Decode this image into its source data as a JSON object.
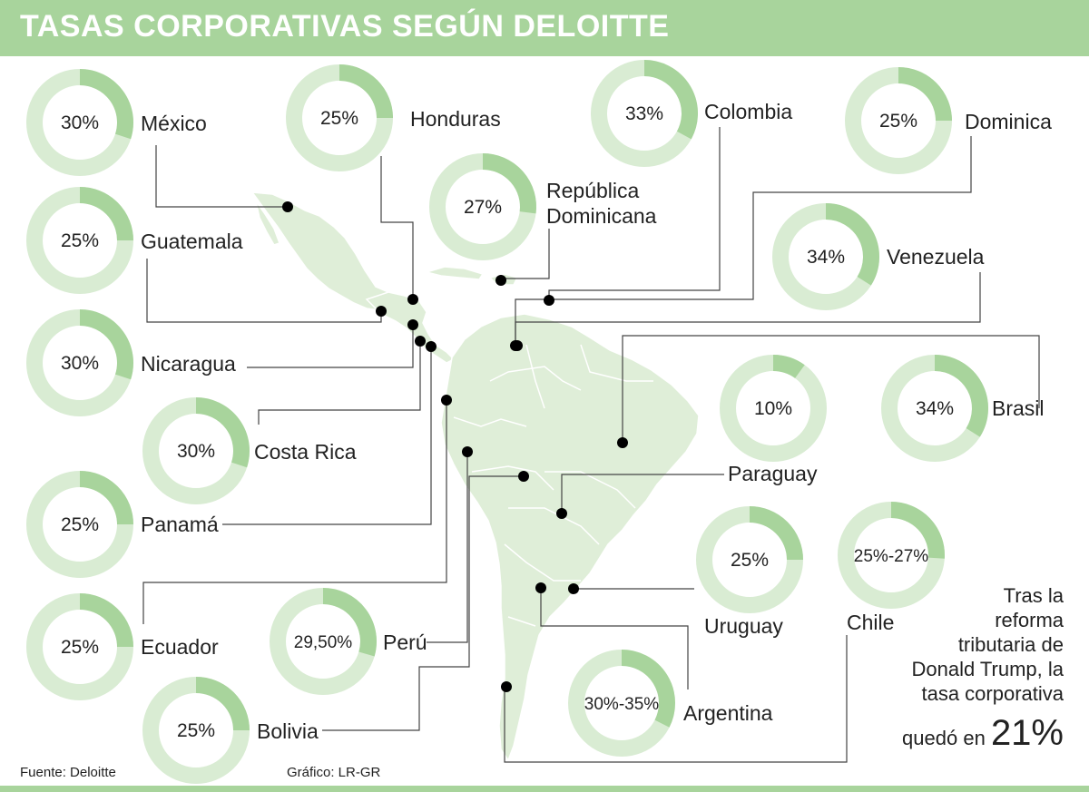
{
  "header": {
    "title": "TASAS CORPORATIVAS SEGÚN DELOITTE"
  },
  "colors": {
    "header_bg": "#a8d49c",
    "ring_fill": "#a8d49c",
    "ring_track": "#d9ecd3",
    "map": "#dfeed8",
    "map_border": "#ffffff",
    "dot": "#000000",
    "line": "#444444"
  },
  "chart_data": {
    "type": "pie",
    "title": "TASAS CORPORATIVAS SEGÚN DELOITTE",
    "unit": "%",
    "series": [
      {
        "country": "México",
        "label": "30%",
        "value": 30
      },
      {
        "country": "Honduras",
        "label": "25%",
        "value": 25
      },
      {
        "country": "Colombia",
        "label": "33%",
        "value": 33
      },
      {
        "country": "Dominica",
        "label": "25%",
        "value": 25
      },
      {
        "country": "República Dominicana",
        "label": "27%",
        "value": 27
      },
      {
        "country": "Guatemala",
        "label": "25%",
        "value": 25
      },
      {
        "country": "Venezuela",
        "label": "34%",
        "value": 34
      },
      {
        "country": "Nicaragua",
        "label": "30%",
        "value": 30
      },
      {
        "country": "Costa Rica",
        "label": "30%",
        "value": 30
      },
      {
        "country": "Paraguay",
        "label": "10%",
        "value": 10
      },
      {
        "country": "Brasil",
        "label": "34%",
        "value": 34
      },
      {
        "country": "Panamá",
        "label": "25%",
        "value": 25
      },
      {
        "country": "Uruguay",
        "label": "25%",
        "value": 25
      },
      {
        "country": "Chile",
        "label": "25%-27%",
        "value": 26
      },
      {
        "country": "Ecuador",
        "label": "25%",
        "value": 25
      },
      {
        "country": "Perú",
        "label": "29,50%",
        "value": 29.5
      },
      {
        "country": "Argentina",
        "label": "30%-35%",
        "value": 32.5
      },
      {
        "country": "Bolivia",
        "label": "25%",
        "value": 25
      }
    ]
  },
  "note": {
    "lines": [
      "Tras la",
      "reforma",
      "tributaria de",
      "Donald Trump, la",
      "tasa corporativa"
    ],
    "last_prefix": "quedó en",
    "big_value": "21%"
  },
  "footer": {
    "source": "Fuente: Deloitte",
    "credit": "Gráfico: LR-GR"
  }
}
